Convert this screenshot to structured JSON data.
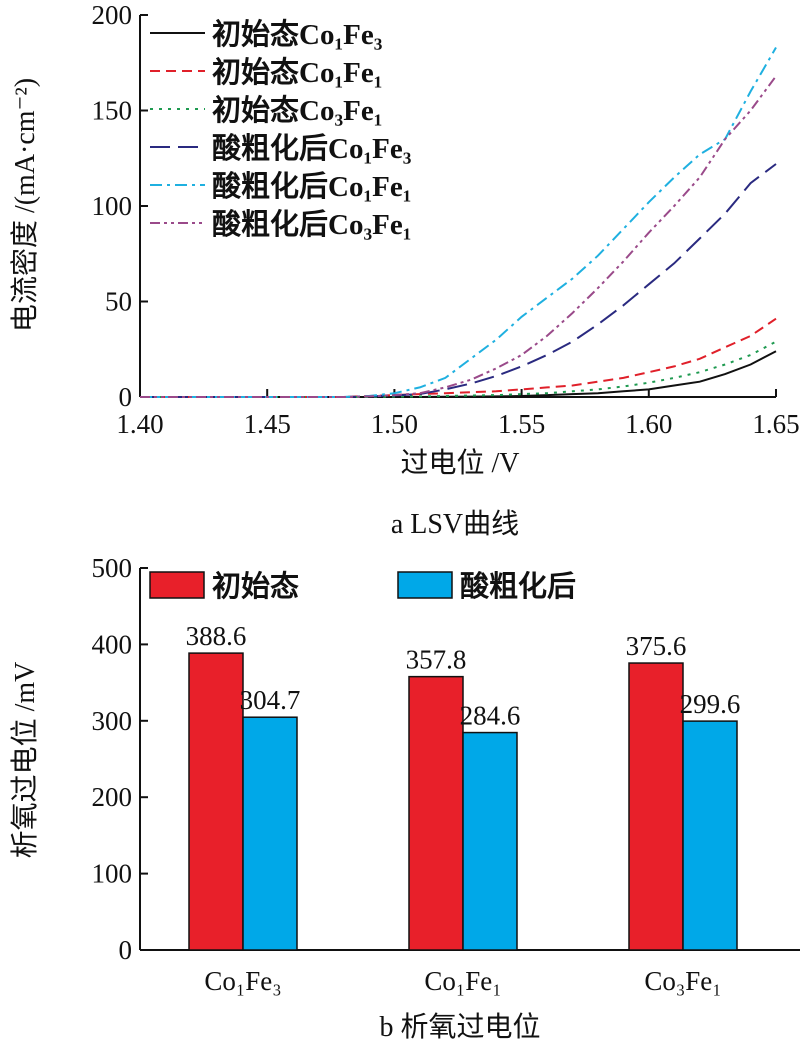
{
  "chart_data": [
    {
      "type": "line",
      "title": "a LSV曲线",
      "xlabel": "过电位 /V",
      "ylabel": "电流密度 /(mA·cm⁻²)",
      "xlim": [
        1.4,
        1.65
      ],
      "ylim": [
        0,
        200
      ],
      "xticks": [
        "1.40",
        "1.45",
        "1.50",
        "1.55",
        "1.60",
        "1.65"
      ],
      "yticks": [
        "0",
        "50",
        "100",
        "150",
        "200"
      ],
      "legend_position": "top-left",
      "x": [
        1.4,
        1.41,
        1.42,
        1.43,
        1.44,
        1.45,
        1.46,
        1.47,
        1.48,
        1.49,
        1.5,
        1.51,
        1.52,
        1.53,
        1.54,
        1.55,
        1.56,
        1.57,
        1.58,
        1.59,
        1.6,
        1.61,
        1.62,
        1.63,
        1.64,
        1.65
      ],
      "series": [
        {
          "name": "初始态Co₁Fe₃",
          "color": "#111111",
          "dash": "solid",
          "values": [
            0,
            0,
            0,
            0,
            0,
            0,
            0,
            0,
            0,
            0,
            0,
            0,
            0.1,
            0.2,
            0.3,
            0.5,
            1,
            1.5,
            2,
            3,
            4,
            6,
            8,
            12,
            17,
            24
          ]
        },
        {
          "name": "初始态Co₁Fe₁",
          "color": "#e0202a",
          "dash": "dash",
          "values": [
            0,
            0,
            0,
            0,
            0,
            0,
            0,
            0,
            0,
            0.5,
            1,
            1.5,
            2,
            2.5,
            3,
            4,
            5,
            6,
            8,
            10,
            13,
            16,
            20,
            26,
            32,
            41
          ]
        },
        {
          "name": "初始态Co₃Fe₁",
          "color": "#1e9a50",
          "dash": "dot",
          "values": [
            0,
            0,
            0,
            0,
            0,
            0,
            0,
            0,
            0,
            0,
            0.2,
            0.3,
            0.5,
            0.8,
            1,
            1.5,
            2,
            3,
            4,
            5.5,
            7.5,
            10,
            13,
            17,
            22,
            29
          ]
        },
        {
          "name": "酸粗化后Co₁Fe₃",
          "color": "#2a2a80",
          "dash": "longdash",
          "values": [
            0,
            0,
            0,
            0,
            0,
            0,
            0,
            0,
            0,
            0.3,
            0.8,
            1.5,
            4,
            7,
            11,
            16,
            22,
            29,
            38,
            48,
            59,
            70,
            83,
            96,
            112,
            122
          ]
        },
        {
          "name": "酸粗化后Co₁Fe₁",
          "color": "#1fb0e0",
          "dash": "dashdot",
          "values": [
            0,
            0,
            0,
            0,
            0,
            0,
            0,
            0,
            0,
            0.5,
            2,
            5,
            10,
            20,
            30,
            42,
            52,
            62,
            74,
            88,
            102,
            115,
            127,
            135,
            160,
            183
          ]
        },
        {
          "name": "酸粗化后Co₃Fe₁",
          "color": "#9a4a8a",
          "dash": "dashdotdot",
          "values": [
            0,
            0,
            0,
            0,
            0,
            0,
            0,
            0,
            0,
            0.3,
            1,
            2,
            5,
            9,
            15,
            22,
            32,
            44,
            57,
            71,
            86,
            100,
            115,
            135,
            150,
            168
          ]
        }
      ]
    },
    {
      "type": "bar",
      "title": "b 析氧过电位",
      "xlabel": "",
      "ylabel": "析氧过电位 /mV",
      "ylim": [
        0,
        500
      ],
      "yticks": [
        "0",
        "100",
        "200",
        "300",
        "400",
        "500"
      ],
      "categories": [
        "Co₁Fe₃",
        "Co₁Fe₁",
        "Co₃Fe₁"
      ],
      "legend_position": "top-left",
      "series": [
        {
          "name": "初始态",
          "color": "#e8202a",
          "values": [
            388.6,
            357.8,
            375.6
          ],
          "labels": [
            "388.6",
            "357.8",
            "375.6"
          ]
        },
        {
          "name": "酸粗化后",
          "color": "#00a8e8",
          "values": [
            304.7,
            284.6,
            299.6
          ],
          "labels": [
            "304.7",
            "284.6",
            "299.6"
          ]
        }
      ]
    }
  ]
}
